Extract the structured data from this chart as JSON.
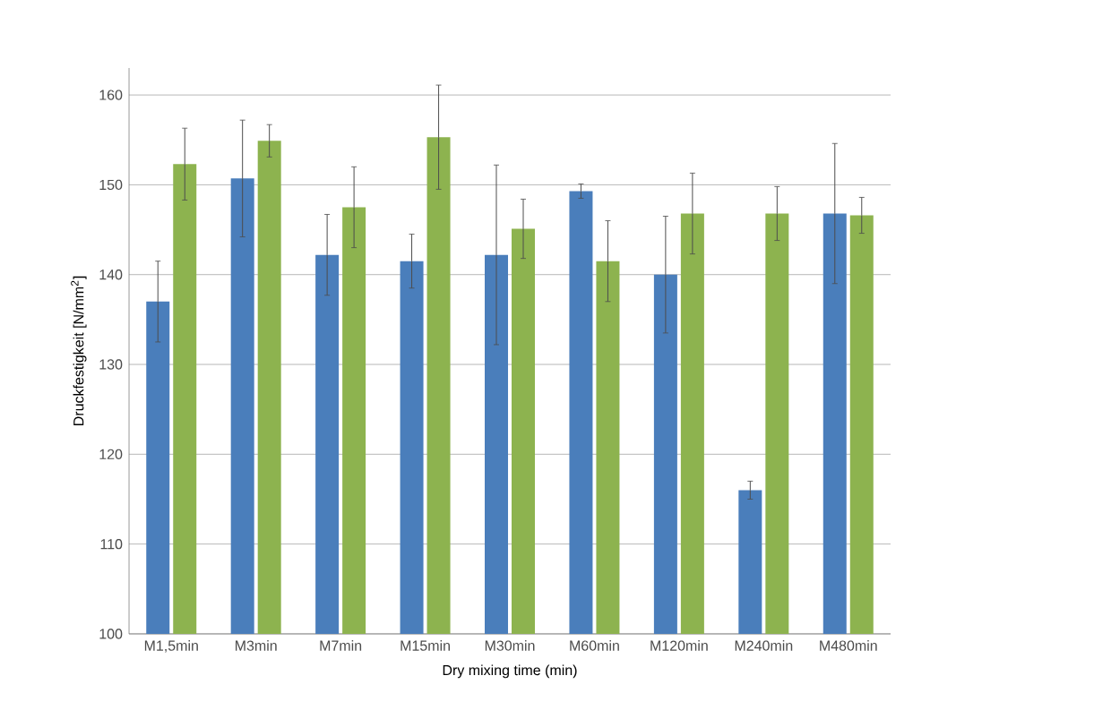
{
  "chart_data": {
    "type": "bar",
    "xlabel": "Dry mixing time (min)",
    "ylabel": "Druckfestigkeit [N/mm$^{2}$]",
    "categories": [
      "M1,5min",
      "M3min",
      "M7min",
      "M15min",
      "M30min",
      "M60min",
      "M120min",
      "M240min",
      "M480min"
    ],
    "series": [
      {
        "color": "#4a7ebb",
        "values": [
          137,
          150.7,
          142.2,
          141.5,
          142.2,
          149.3,
          140,
          116,
          146.8
        ],
        "errors": [
          4.5,
          6.5,
          4.5,
          3,
          10,
          0.8,
          6.5,
          1,
          7.8
        ]
      },
      {
        "color": "#8db34f",
        "values": [
          152.3,
          154.9,
          147.5,
          155.3,
          145.1,
          141.5,
          146.8,
          146.8,
          146.6
        ],
        "errors": [
          4,
          1.8,
          4.5,
          5.8,
          3.3,
          4.5,
          4.5,
          3,
          2
        ]
      }
    ],
    "ylim": [
      100,
      163
    ],
    "yticks": [
      100,
      110,
      120,
      130,
      140,
      150,
      160
    ],
    "grid": "y"
  }
}
